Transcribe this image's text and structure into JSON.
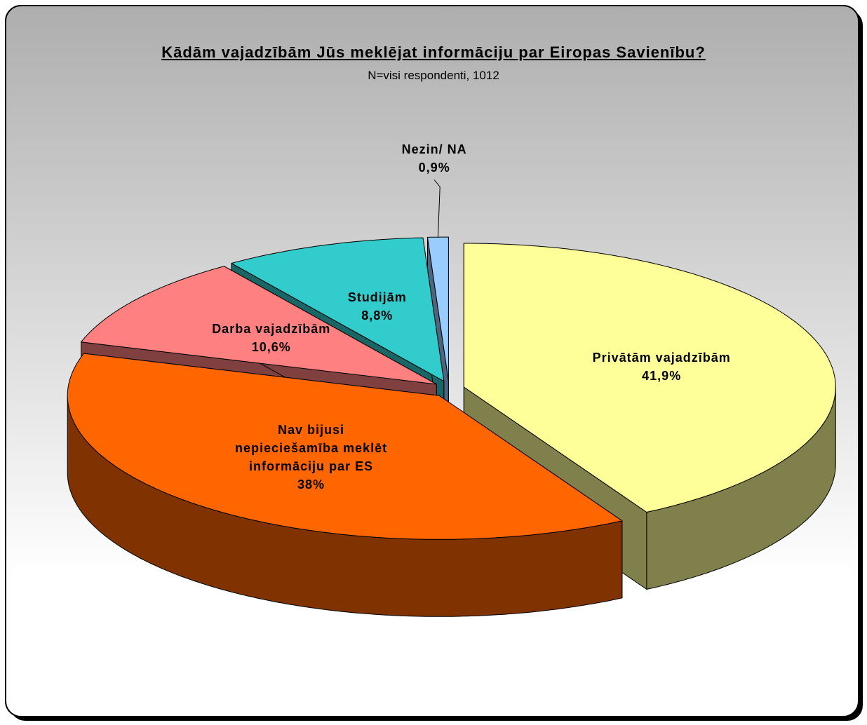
{
  "chart_data": {
    "type": "pie3d",
    "title": "Kādām vajadzībām Jūs meklējat informāciju par Eiropas Savienību?",
    "subtitle": "N=visi respondenti, 1012",
    "categories": [
      "Privātām vajadzībām",
      "Nav bijusi nepieciešamība meklēt informāciju par ES",
      "Darba vajadzībām",
      "Studijām",
      "Nezin/ NA"
    ],
    "values": [
      41.9,
      38,
      10.6,
      8.8,
      0.9
    ],
    "value_labels": [
      "41,9%",
      "38%",
      "10,6%",
      "8,8%",
      "0,9%"
    ],
    "colors": [
      "#ffff99",
      "#ff6600",
      "#ff8080",
      "#33cccc",
      "#99ccff"
    ]
  }
}
